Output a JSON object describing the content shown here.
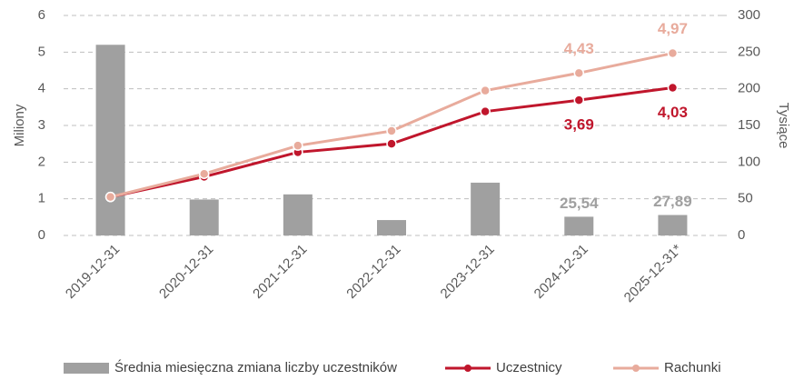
{
  "chart_data": {
    "type": "bar-line",
    "y_label": "Miliony",
    "y2_label": "Tysiące",
    "categories": [
      "2019-12-31",
      "2020-12-31",
      "2021-12-31",
      "2022-12-31",
      "2023-12-31",
      "2024-12-31",
      "2025-12-31*"
    ],
    "series": [
      {
        "name": "Średnia miesięczna zmiana liczby uczestników",
        "type": "bar",
        "axis": "y2",
        "color": "#a0a0a0",
        "values": [
          260,
          49,
          56,
          21,
          72,
          25.54,
          27.89
        ],
        "value_labels": [
          null,
          null,
          null,
          null,
          null,
          "25,54",
          "27,89"
        ]
      },
      {
        "name": "Uczestnicy",
        "type": "line",
        "axis": "y",
        "color": "#c0162c",
        "values": [
          1.05,
          1.6,
          2.27,
          2.5,
          3.38,
          3.69,
          4.03
        ],
        "value_labels": [
          null,
          null,
          null,
          null,
          null,
          "3,69",
          "4,03"
        ]
      },
      {
        "name": "Rachunki",
        "type": "line",
        "axis": "y",
        "color": "#e8ab9c",
        "values": [
          1.05,
          1.68,
          2.45,
          2.85,
          3.95,
          4.43,
          4.97
        ],
        "value_labels": [
          null,
          null,
          null,
          null,
          null,
          "4,43",
          "4,97"
        ]
      }
    ],
    "ylim": [
      0,
      6
    ],
    "yticks": [
      0,
      1,
      2,
      3,
      4,
      5,
      6
    ],
    "y2lim": [
      0,
      300
    ],
    "y2ticks": [
      0,
      50,
      100,
      150,
      200,
      250,
      300
    ],
    "grid": true,
    "legend": "bottom"
  }
}
